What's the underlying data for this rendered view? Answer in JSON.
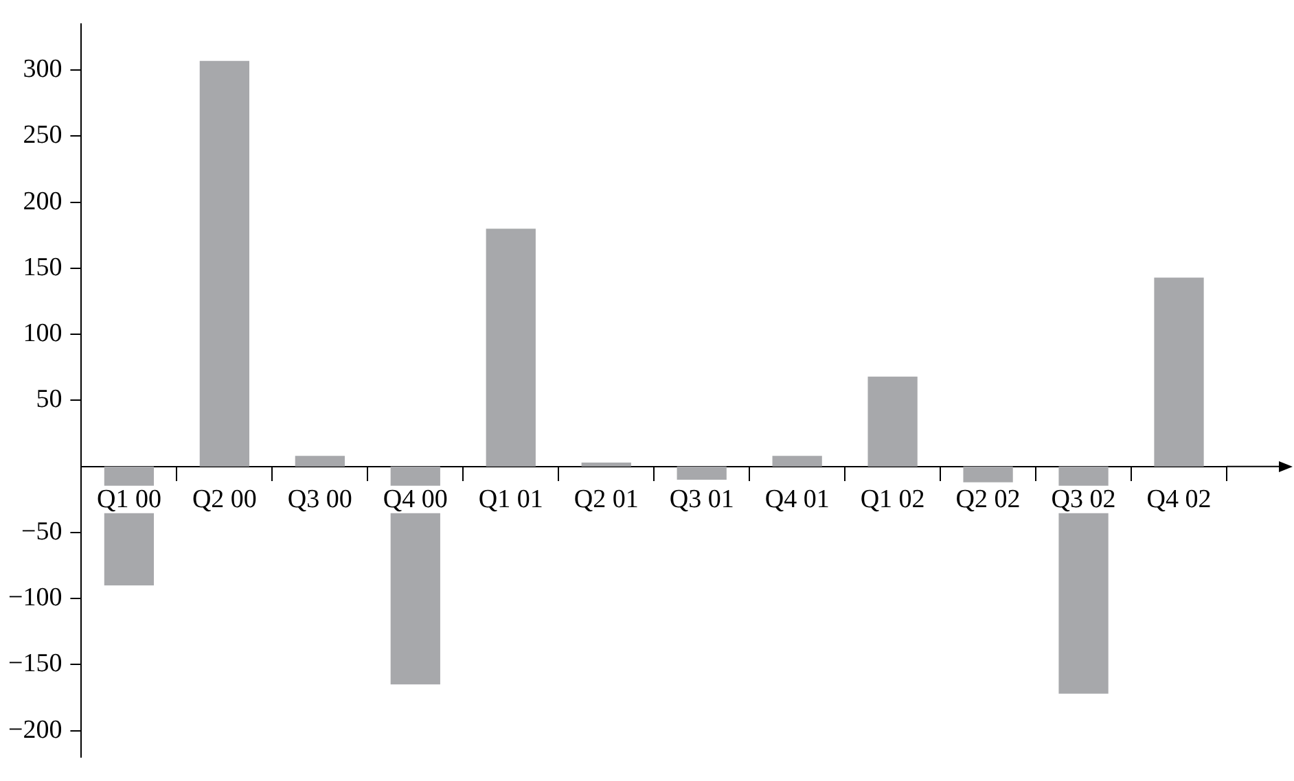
{
  "chart_data": {
    "type": "bar",
    "categories": [
      "Q1 00",
      "Q2 00",
      "Q3 00",
      "Q4 00",
      "Q1 01",
      "Q2 01",
      "Q3 01",
      "Q4 01",
      "Q1 02",
      "Q2 02",
      "Q3 02",
      "Q4 02"
    ],
    "values": [
      -90,
      307,
      8,
      -165,
      180,
      3,
      -10,
      8,
      68,
      -12,
      -172,
      143
    ],
    "color": "#a7a8ab",
    "ylim": [
      -220,
      335
    ],
    "yticks": [
      {
        "value": -200,
        "label": "−200"
      },
      {
        "value": -150,
        "label": "−150"
      },
      {
        "value": -100,
        "label": "−100"
      },
      {
        "value": -50,
        "label": "−50"
      },
      50,
      100,
      150,
      200,
      250,
      300
    ],
    "grid": false,
    "legend": false
  }
}
